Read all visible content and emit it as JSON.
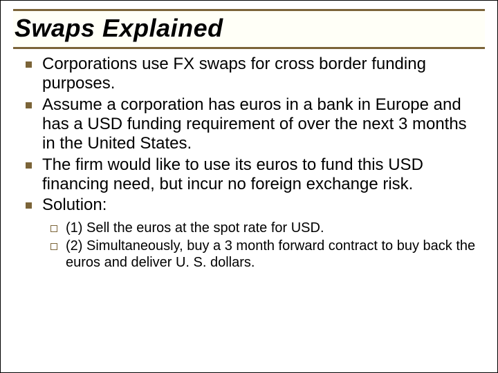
{
  "title": "Swaps Explained",
  "colors": {
    "accent": "#7b6438",
    "text": "#000000",
    "background": "#ffffff"
  },
  "typography": {
    "title_fontsize": 36,
    "title_style": "bold italic",
    "body_fontsize": 24,
    "sub_fontsize": 20,
    "font_family": "Arial"
  },
  "bullets": [
    {
      "text": "Corporations use FX swaps for cross border funding purposes."
    },
    {
      "text": "Assume a corporation has euros in a bank in Europe and has a USD funding requirement of over the next 3 months in the United States."
    },
    {
      "text": "The firm would like to use its euros to fund this USD financing need, but incur no foreign exchange risk."
    },
    {
      "text": "Solution:",
      "children": [
        {
          "text": "(1)  Sell the euros at the spot rate for USD."
        },
        {
          "text": "(2)  Simultaneously, buy a 3 month forward contract to buy back the euros and deliver U. S. dollars."
        }
      ]
    }
  ]
}
